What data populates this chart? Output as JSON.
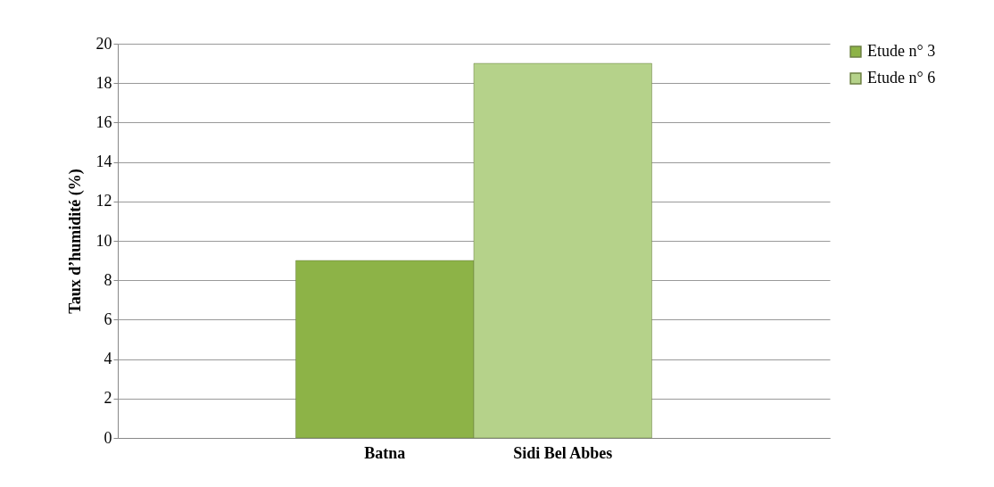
{
  "chart_data": {
    "type": "bar",
    "ylabel": "Taux d’humidité (%)",
    "categories": [
      "Batna",
      "Sidi Bel Abbes"
    ],
    "series": [
      {
        "name": "Etude n° 3",
        "color": "#8db347",
        "values": [
          9,
          null
        ]
      },
      {
        "name": "Etude n° 6",
        "color": "#b5d28a",
        "values": [
          null,
          19
        ]
      }
    ],
    "ylim": [
      0,
      20
    ],
    "yticks": [
      0,
      2,
      4,
      6,
      8,
      10,
      12,
      14,
      16,
      18,
      20
    ],
    "grid": "y",
    "legend": "right"
  }
}
